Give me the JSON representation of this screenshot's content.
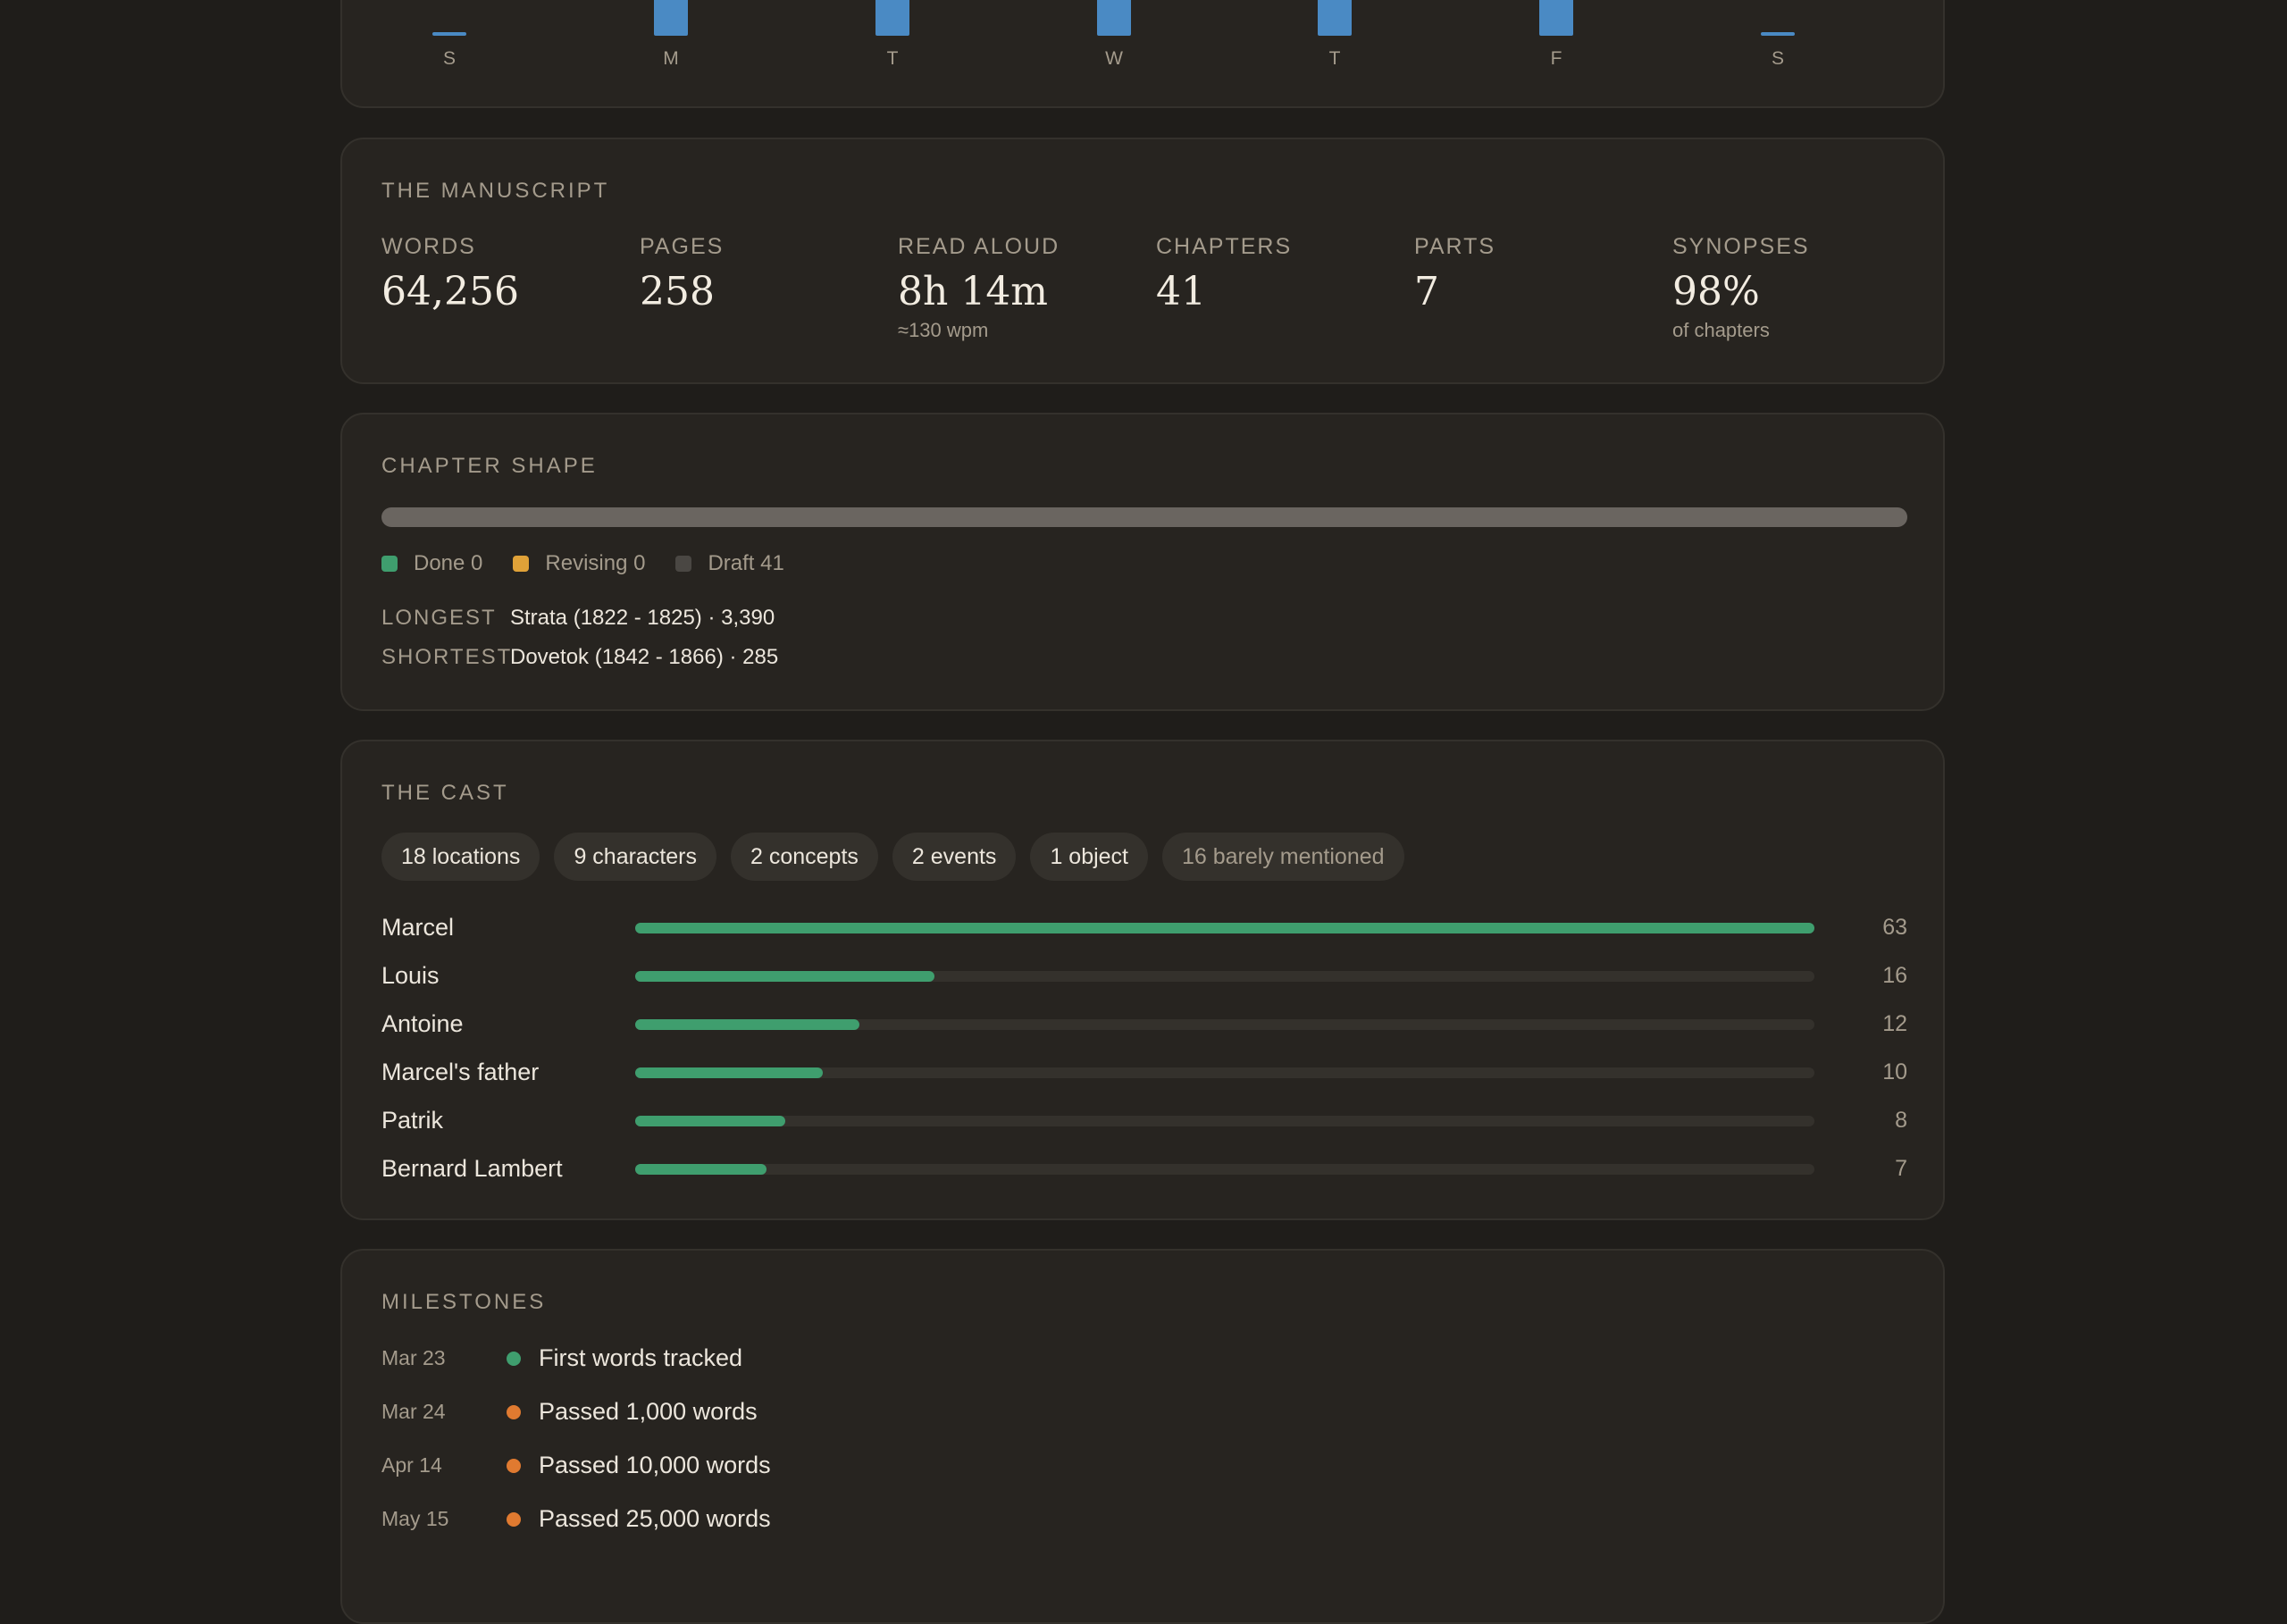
{
  "weekly": {
    "days": [
      {
        "label": "S",
        "value": 0
      },
      {
        "label": "M",
        "value": 1
      },
      {
        "label": "T",
        "value": 1
      },
      {
        "label": "W",
        "value": 1
      },
      {
        "label": "T",
        "value": 1
      },
      {
        "label": "F",
        "value": 1
      },
      {
        "label": "S",
        "value": 0
      }
    ],
    "bar_color": "#4a8ac4"
  },
  "manuscript": {
    "title": "THE MANUSCRIPT",
    "stats": [
      {
        "label": "WORDS",
        "value": "64,256",
        "sub": ""
      },
      {
        "label": "PAGES",
        "value": "258",
        "sub": ""
      },
      {
        "label": "READ ALOUD",
        "value": "8h 14m",
        "sub": "≈130 wpm"
      },
      {
        "label": "CHAPTERS",
        "value": "41",
        "sub": ""
      },
      {
        "label": "PARTS",
        "value": "7",
        "sub": ""
      },
      {
        "label": "SYNOPSES",
        "value": "98%",
        "sub": "of chapters"
      }
    ]
  },
  "chapter_shape": {
    "title": "CHAPTER SHAPE",
    "legend": [
      {
        "label": "Done 0",
        "color": "#3f9e6e"
      },
      {
        "label": "Revising 0",
        "color": "#e0a238"
      },
      {
        "label": "Draft 41",
        "color": "#4a4743"
      }
    ],
    "longest_label": "LONGEST",
    "longest_value": "Strata (1822 - 1825) · 3,390",
    "shortest_label": "SHORTEST",
    "shortest_value": "Dovetok (1842 - 1866) · 285"
  },
  "cast": {
    "title": "THE CAST",
    "chips": [
      {
        "label": "18 locations",
        "muted": false
      },
      {
        "label": "9 characters",
        "muted": false
      },
      {
        "label": "2 concepts",
        "muted": false
      },
      {
        "label": "2 events",
        "muted": false
      },
      {
        "label": "1 object",
        "muted": false
      },
      {
        "label": "16 barely mentioned",
        "muted": true
      }
    ],
    "max": 63,
    "rows": [
      {
        "name": "Marcel",
        "count": "63",
        "value": 63
      },
      {
        "name": "Louis",
        "count": "16",
        "value": 16
      },
      {
        "name": "Antoine",
        "count": "12",
        "value": 12
      },
      {
        "name": "Marcel's father",
        "count": "10",
        "value": 10
      },
      {
        "name": "Patrik",
        "count": "8",
        "value": 8
      },
      {
        "name": "Bernard Lambert",
        "count": "7",
        "value": 7
      }
    ],
    "bar_color": "#3f9e6e"
  },
  "milestones": {
    "title": "MILESTONES",
    "items": [
      {
        "date": "Mar 23",
        "text": "First words tracked",
        "color": "#3f9e6e"
      },
      {
        "date": "Mar 24",
        "text": "Passed 1,000 words",
        "color": "#e07a30"
      },
      {
        "date": "Apr 14",
        "text": "Passed 10,000 words",
        "color": "#e07a30"
      },
      {
        "date": "May 15",
        "text": "Passed 25,000 words",
        "color": "#e07a30"
      }
    ]
  }
}
